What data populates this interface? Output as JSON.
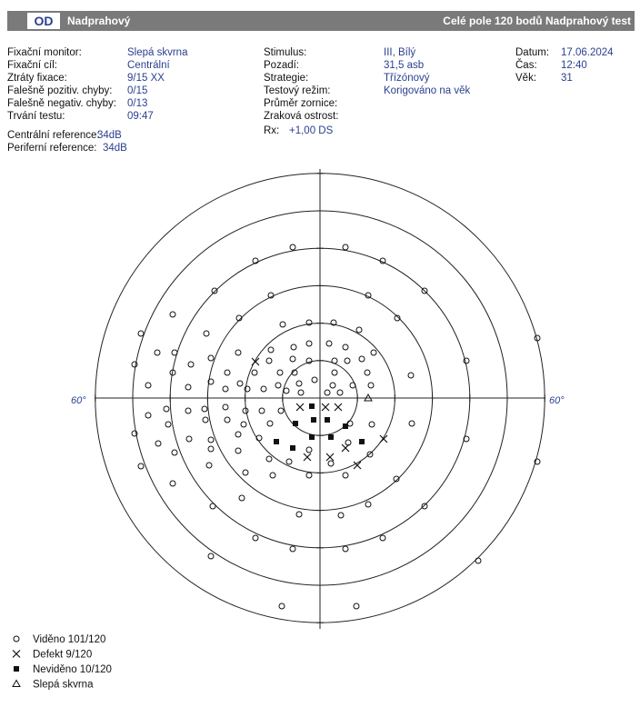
{
  "header": {
    "eye": "OD",
    "mode": "Nadprahový",
    "test": "Celé pole 120 bodů Nadprahový test"
  },
  "info": {
    "col1": [
      {
        "label": "Fixační monitor:",
        "value": "Slepá skvrna"
      },
      {
        "label": "Fixační cíl:",
        "value": "Centrální"
      },
      {
        "label": "Ztráty fixace:",
        "value": "9/15 XX"
      },
      {
        "label": "Falešně pozitiv. chyby:",
        "value": "0/15"
      },
      {
        "label": "Falešně negativ. chyby:",
        "value": "0/13"
      },
      {
        "label": "Trvání testu:",
        "value": "09:47"
      }
    ],
    "col2": [
      {
        "label": "Stimulus:",
        "value": "III, Bílý"
      },
      {
        "label": "Pozadí:",
        "value": "31,5 asb"
      },
      {
        "label": "Strategie:",
        "value": "Třízónový"
      },
      {
        "label": "Testový režim:",
        "value": "Korigováno na věk"
      },
      {
        "label": "Průměr zornice:"
      },
      {
        "label": "Zraková ostrost:"
      }
    ],
    "col3": [
      {
        "label": "Datum:",
        "value": "17.06.2024"
      },
      {
        "label": "Čas:",
        "value": "12:40"
      },
      {
        "label": "Věk:",
        "value": "31"
      }
    ],
    "references": [
      {
        "label": "Centrální reference:",
        "value": "34dB"
      },
      {
        "label": "Periferní reference:",
        "value": "34dB"
      }
    ],
    "rx": {
      "label": "Rx:",
      "value": "+1,00 DS"
    }
  },
  "axis_labels": {
    "left": "60°",
    "right": "60°"
  },
  "legend": [
    "Viděno 101/120",
    "Defekt 9/120",
    "Neviděno 10/120",
    "Slepá skvrna"
  ]
}
